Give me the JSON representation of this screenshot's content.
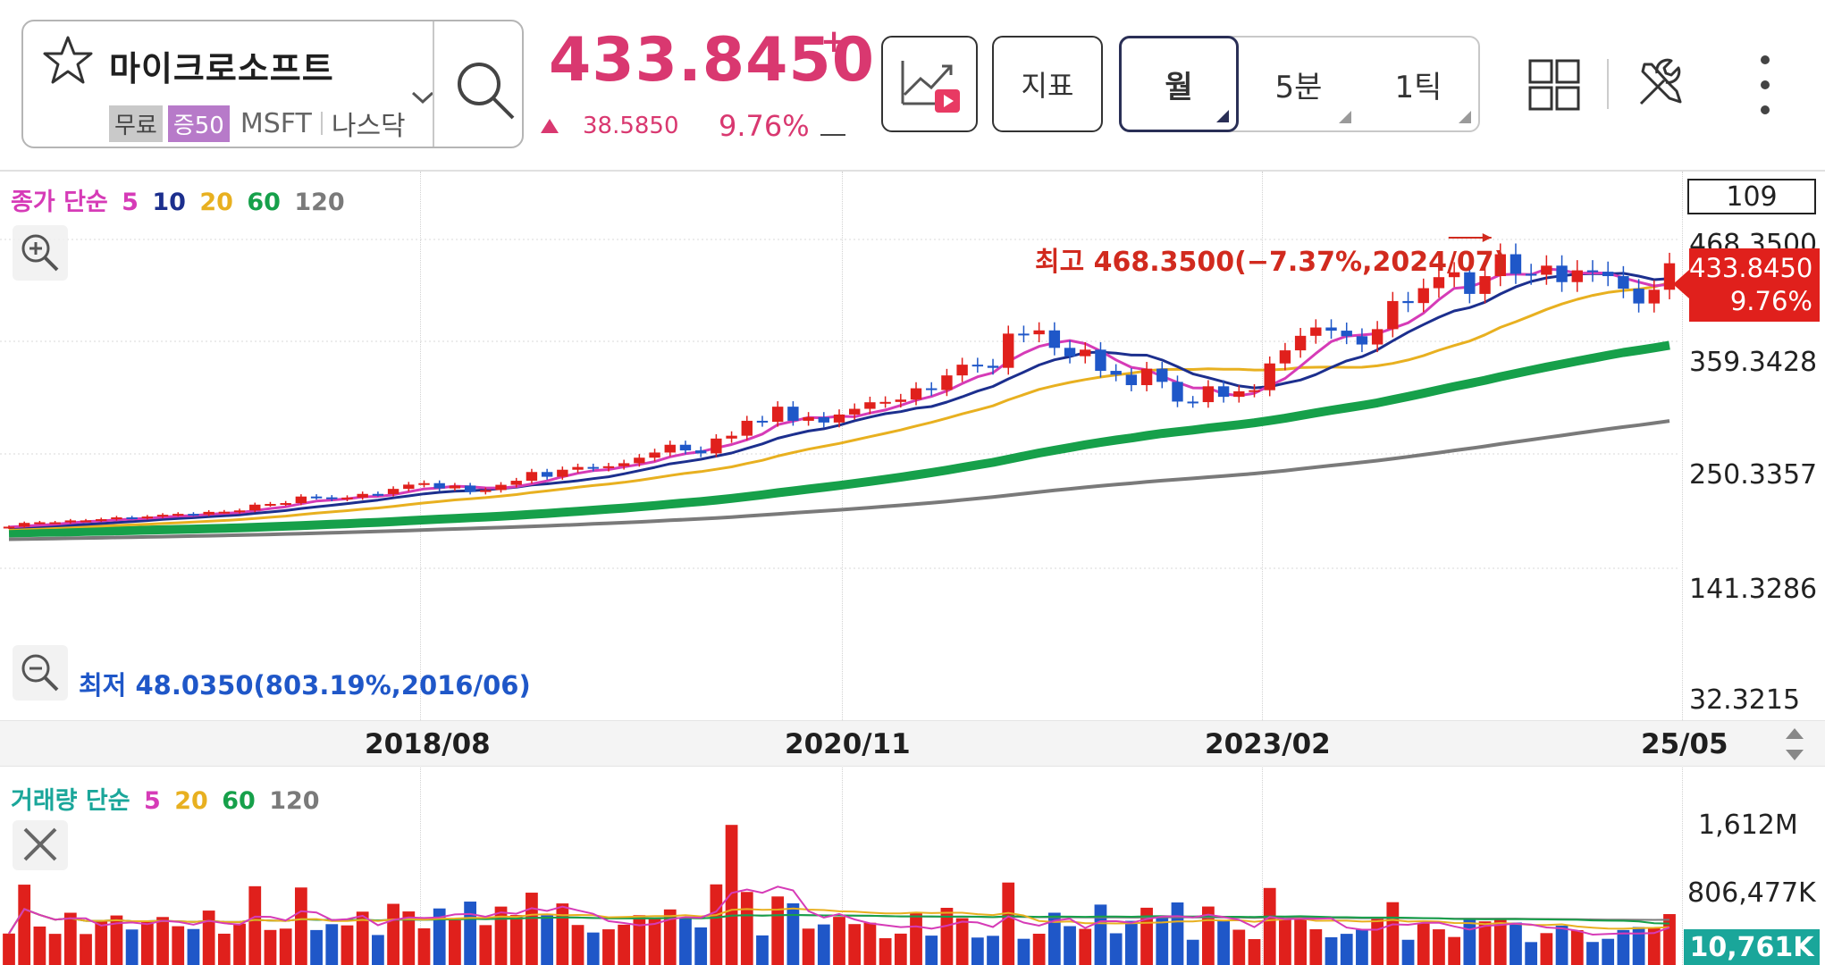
{
  "stock": {
    "name": "마이크로소프트",
    "tag_free": "무료",
    "tag_margin": "증50",
    "ticker": "MSFT",
    "market": "나스닥",
    "price": "433.8450",
    "price_sign": "+",
    "change_value": "38.5850",
    "change_pct": "9.76%"
  },
  "toolbar": {
    "indicator_label": "지표",
    "periods": [
      "월",
      "5분",
      "1틱"
    ],
    "active_period": "월"
  },
  "icons": [
    "star-icon",
    "chevron-down-icon",
    "search-icon",
    "chart-play-icon",
    "grid-icon",
    "tools-icon",
    "more-vertical-icon",
    "zoom-in-icon",
    "zoom-out-icon",
    "close-icon",
    "scroll-arrows-icon"
  ],
  "colors": {
    "up": "#e0201c",
    "down": "#1f57c8",
    "ma5": "#d63bb7",
    "ma10": "#1c2f8e",
    "ma20": "#e8b020",
    "ma60": "#16a04a",
    "ma120": "#7a7a7a",
    "accent": "#d93870"
  },
  "price_chart": {
    "legend": {
      "label": "종가 단순",
      "periods": [
        "5",
        "10",
        "20",
        "60",
        "120"
      ]
    },
    "count": "109",
    "price_labels": [
      "468.3500",
      "359.3428",
      "250.3357",
      "141.3286",
      "32.3215"
    ],
    "current_price": "433.8450",
    "current_pct": "9.76%",
    "high_annotation": "최고 468.3500(−7.37%,2024/07)",
    "low_annotation": "최저 48.0350(803.19%,2016/06)",
    "dates": [
      "2018/08",
      "2020/11",
      "2023/02",
      "25/05"
    ]
  },
  "volume_chart": {
    "legend": {
      "label": "거래량 단순",
      "periods": [
        "5",
        "20",
        "60",
        "120"
      ]
    },
    "labels": [
      "1,612M",
      "806,477K"
    ],
    "current": "10,761K"
  },
  "chart_data": [
    {
      "type": "candlestick",
      "title": "",
      "ylim": [
        32.3215,
        468.35
      ],
      "x_start": "2016/06",
      "x_end": "2025/05",
      "interval": "monthly",
      "high": {
        "value": 468.35,
        "date": "2024/07"
      },
      "low": {
        "value": 48.035,
        "date": "2016/06"
      },
      "close": [
        51.2,
        56.7,
        57.6,
        57.6,
        60.3,
        60.3,
        62.1,
        64.7,
        64.0,
        65.9,
        68.5,
        69.8,
        68.9,
        72.7,
        72.9,
        74.8,
        83.2,
        84.2,
        85.5,
        95.0,
        93.8,
        91.3,
        93.5,
        98.8,
        98.6,
        106.1,
        112.3,
        114.4,
        106.8,
        110.9,
        101.6,
        104.4,
        112.0,
        117.9,
        130.6,
        123.7,
        133.9,
        137.9,
        136.3,
        139.0,
        143.4,
        151.4,
        158.9,
        170.2,
        162.0,
        157.7,
        179.2,
        183.3,
        205.0,
        203.5,
        225.5,
        205.0,
        210.3,
        202.5,
        214.1,
        222.4,
        231.9,
        232.4,
        235.8,
        252.2,
        249.7,
        270.9,
        286.5,
        284.9,
        281.9,
        331.6,
        330.6,
        336.3,
        310.9,
        298.8,
        308.3,
        277.5,
        271.9,
        256.8,
        280.7,
        261.5,
        232.9,
        232.1,
        255.1,
        239.8,
        247.8,
        249.4,
        288.3,
        307.3,
        328.4,
        340.5,
        335.9,
        327.8,
        315.8,
        338.1,
        378.9,
        376.0,
        397.6,
        413.6,
        420.7,
        389.3,
        415.1,
        446.9,
        418.4,
        417.1,
        430.3,
        406.4,
        423.5,
        421.5,
        415.1,
        396.9,
        375.4,
        395.3,
        433.8
      ],
      "ma": {
        "periods": [
          5,
          10,
          20,
          60,
          120
        ]
      }
    },
    {
      "type": "bar",
      "title": "",
      "ylim": [
        0,
        1612000000
      ],
      "series": [
        {
          "name": "거래량",
          "values_last": 10761000
        }
      ]
    }
  ]
}
